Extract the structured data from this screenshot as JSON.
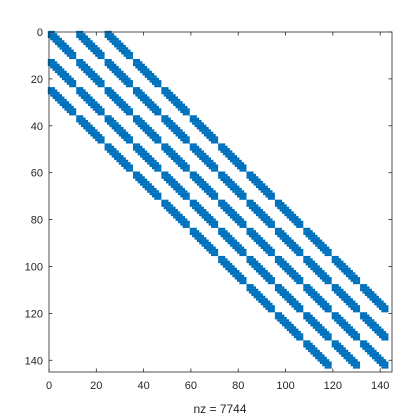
{
  "chart_data": {
    "type": "heatmap",
    "subtype": "sparsity-pattern",
    "xlabel": "nz = 7744",
    "xlim": [
      0,
      145
    ],
    "ylim": [
      0,
      145
    ],
    "y_reversed": true,
    "xticks": [
      0,
      20,
      40,
      60,
      80,
      100,
      120,
      140
    ],
    "yticks": [
      0,
      20,
      40,
      60,
      80,
      100,
      120,
      140
    ],
    "marker_color": "#0072bd",
    "axis_color": "#262626",
    "pattern": {
      "matrix_size": 144,
      "block_size": 12,
      "block_bandwidth": 2,
      "inner_bandwidth": 2
    }
  }
}
